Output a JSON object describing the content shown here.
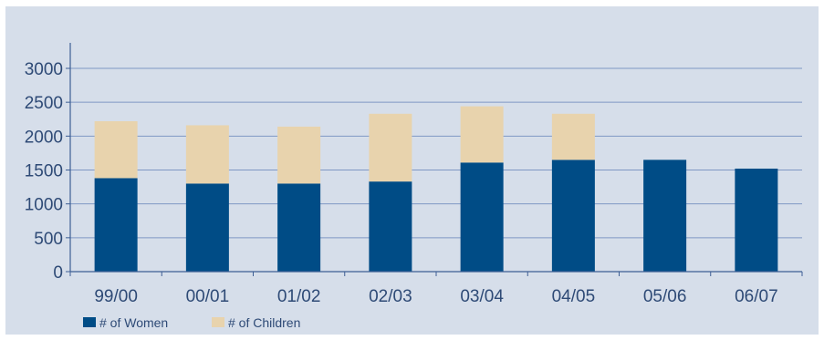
{
  "chart_data": {
    "type": "bar",
    "stacked": true,
    "title": "",
    "xlabel": "",
    "ylabel": "",
    "categories": [
      "99/00",
      "00/01",
      "01/02",
      "02/03",
      "03/04",
      "04/05",
      "05/06",
      "06/07"
    ],
    "series": [
      {
        "name": "# of Women",
        "color": "#004c86",
        "values": [
          1380,
          1300,
          1300,
          1330,
          1610,
          1650,
          1650,
          1520
        ]
      },
      {
        "name": "# of Children",
        "color": "#e8d3ad",
        "values": [
          840,
          860,
          840,
          1000,
          830,
          680,
          0,
          0
        ]
      }
    ],
    "ylim": [
      0,
      3000
    ],
    "yticks": [
      0,
      500,
      1000,
      1500,
      2000,
      2500,
      3000
    ],
    "grid": true,
    "legend": "bottom-left"
  }
}
